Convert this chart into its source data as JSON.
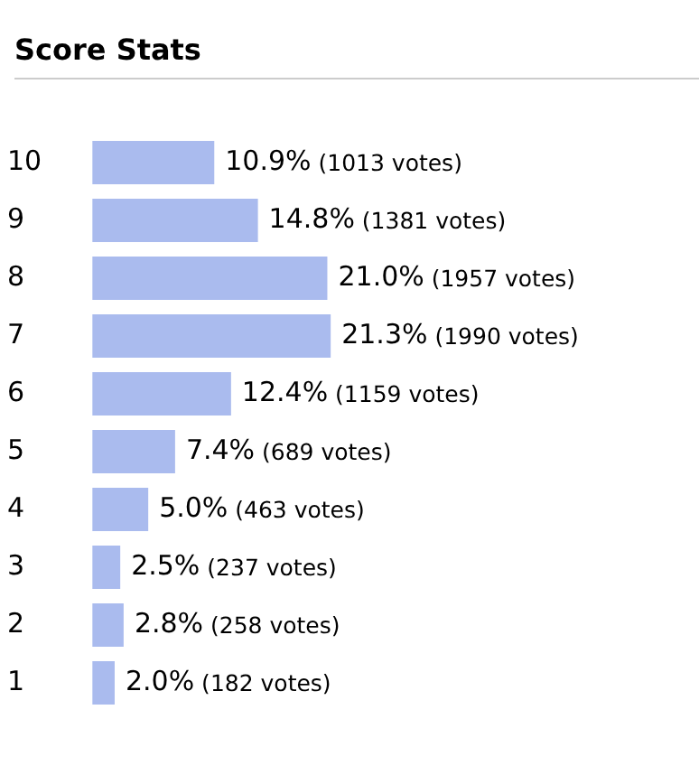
{
  "chart_data": {
    "type": "bar",
    "orientation": "horizontal",
    "title": "Score Stats",
    "categories": [
      "10",
      "9",
      "8",
      "7",
      "6",
      "5",
      "4",
      "3",
      "2",
      "1"
    ],
    "values": [
      10.9,
      14.8,
      21.0,
      21.3,
      12.4,
      7.4,
      5.0,
      2.5,
      2.8,
      2.0
    ],
    "value_labels": [
      "10.9% (1013 votes)",
      "14.8% (1381 votes)",
      "21.0% (1957 votes)",
      "21.3% (1990 votes)",
      "12.4% (1159 votes)",
      "7.4% (689 votes)",
      "5.0% (463 votes)",
      "2.5% (237 votes)",
      "2.8% (258 votes)",
      "2.0% (182 votes)"
    ],
    "color": "#aabbee"
  }
}
